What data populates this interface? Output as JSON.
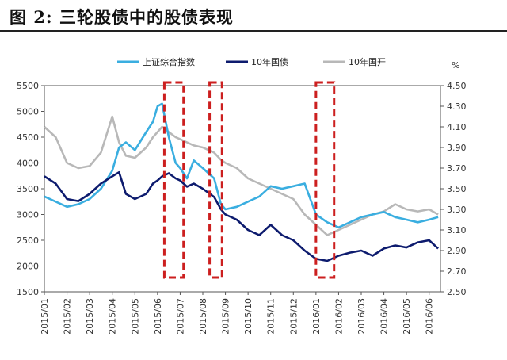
{
  "figure": {
    "title": "图 2:  三轮股债中的股债表现"
  },
  "chart_data": {
    "type": "line",
    "title": "",
    "xlabel": "",
    "ylabel_left": "",
    "ylabel_right": "%",
    "x_ticks": [
      "2015/01",
      "2015/02",
      "2015/03",
      "2015/04",
      "2015/05",
      "2015/06",
      "2015/07",
      "2015/08",
      "2015/09",
      "2015/10",
      "2015/11",
      "2015/12",
      "2016/01",
      "2016/02",
      "2016/03",
      "2016/04",
      "2016/05",
      "2016/06"
    ],
    "y_left": {
      "min": 1500,
      "max": 5500,
      "ticks": [
        "1500",
        "2000",
        "2500",
        "3000",
        "3500",
        "4000",
        "4500",
        "5000",
        "5500"
      ]
    },
    "y_right": {
      "min": 2.5,
      "max": 4.5,
      "ticks": [
        "2.50",
        "2.70",
        "2.90",
        "3.10",
        "3.30",
        "3.50",
        "3.70",
        "3.90",
        "4.10",
        "4.30",
        "4.50"
      ]
    },
    "legend_position": "top",
    "grid": false,
    "series": [
      {
        "name": "上证综合指数",
        "axis": "left",
        "color": "#3aaee0",
        "x": [
          "2015/01",
          "2015/01.5",
          "2015/02",
          "2015/02.5",
          "2015/03",
          "2015/03.5",
          "2015/04",
          "2015/04.3",
          "2015/04.6",
          "2015/05",
          "2015/05.5",
          "2015/05.8",
          "2015/06",
          "2015/06.2",
          "2015/06.5",
          "2015/06.8",
          "2015/07",
          "2015/07.3",
          "2015/07.6",
          "2015/08",
          "2015/08.5",
          "2015/08.8",
          "2015/09",
          "2015/09.5",
          "2015/10",
          "2015/10.5",
          "2015/11",
          "2015/11.5",
          "2015/12",
          "2015/12.5",
          "2016/01",
          "2016/01.5",
          "2016/02",
          "2016/02.5",
          "2016/03",
          "2016/03.5",
          "2016/04",
          "2016/04.5",
          "2016/05",
          "2016/05.5",
          "2016/06",
          "2016/06.4"
        ],
        "values": [
          3350,
          3250,
          3150,
          3200,
          3300,
          3500,
          3850,
          4300,
          4400,
          4250,
          4600,
          4800,
          5100,
          5150,
          4500,
          4000,
          3900,
          3700,
          4050,
          3900,
          3700,
          3200,
          3100,
          3150,
          3250,
          3350,
          3550,
          3500,
          3550,
          3600,
          3000,
          2850,
          2750,
          2850,
          2950,
          3000,
          3050,
          2950,
          2900,
          2850,
          2900,
          2950
        ]
      },
      {
        "name": "10年国债",
        "axis": "right",
        "color": "#0d1b6e",
        "x": [
          "2015/01",
          "2015/01.5",
          "2015/02",
          "2015/02.5",
          "2015/03",
          "2015/03.5",
          "2015/04",
          "2015/04.3",
          "2015/04.6",
          "2015/05",
          "2015/05.5",
          "2015/05.8",
          "2015/06",
          "2015/06.2",
          "2015/06.5",
          "2015/06.8",
          "2015/07",
          "2015/07.3",
          "2015/07.6",
          "2015/08",
          "2015/08.5",
          "2015/08.8",
          "2015/09",
          "2015/09.5",
          "2015/10",
          "2015/10.5",
          "2015/11",
          "2015/11.5",
          "2015/12",
          "2015/12.5",
          "2016/01",
          "2016/01.5",
          "2016/02",
          "2016/02.5",
          "2016/03",
          "2016/03.5",
          "2016/04",
          "2016/04.5",
          "2016/05",
          "2016/05.5",
          "2016/06",
          "2016/06.4"
        ],
        "values": [
          3.62,
          3.55,
          3.4,
          3.38,
          3.45,
          3.55,
          3.62,
          3.66,
          3.45,
          3.4,
          3.45,
          3.55,
          3.58,
          3.62,
          3.65,
          3.6,
          3.58,
          3.52,
          3.55,
          3.5,
          3.42,
          3.3,
          3.25,
          3.2,
          3.1,
          3.05,
          3.15,
          3.05,
          3.0,
          2.9,
          2.82,
          2.8,
          2.85,
          2.88,
          2.9,
          2.85,
          2.92,
          2.95,
          2.93,
          2.98,
          3.0,
          2.92
        ]
      },
      {
        "name": "10年国开",
        "axis": "right",
        "color": "#b8b8b8",
        "x": [
          "2015/01",
          "2015/01.5",
          "2015/02",
          "2015/02.5",
          "2015/03",
          "2015/03.5",
          "2015/04",
          "2015/04.3",
          "2015/04.6",
          "2015/05",
          "2015/05.5",
          "2015/05.8",
          "2015/06",
          "2015/06.2",
          "2015/06.5",
          "2015/06.8",
          "2015/07",
          "2015/07.3",
          "2015/07.6",
          "2015/08",
          "2015/08.5",
          "2015/08.8",
          "2015/09",
          "2015/09.5",
          "2015/10",
          "2015/10.5",
          "2015/11",
          "2015/11.5",
          "2015/12",
          "2015/12.5",
          "2016/01",
          "2016/01.5",
          "2016/02",
          "2016/02.5",
          "2016/03",
          "2016/03.5",
          "2016/04",
          "2016/04.5",
          "2016/05",
          "2016/05.5",
          "2016/06",
          "2016/06.4"
        ],
        "values": [
          4.1,
          4.0,
          3.75,
          3.7,
          3.72,
          3.85,
          4.2,
          3.95,
          3.82,
          3.8,
          3.9,
          4.0,
          4.05,
          4.1,
          4.05,
          4.0,
          3.98,
          3.95,
          3.92,
          3.9,
          3.85,
          3.78,
          3.75,
          3.7,
          3.6,
          3.55,
          3.5,
          3.45,
          3.4,
          3.25,
          3.15,
          3.05,
          3.1,
          3.15,
          3.2,
          3.25,
          3.28,
          3.35,
          3.3,
          3.28,
          3.3,
          3.25
        ]
      }
    ],
    "highlight_box_color": "#cc1f1f"
  }
}
